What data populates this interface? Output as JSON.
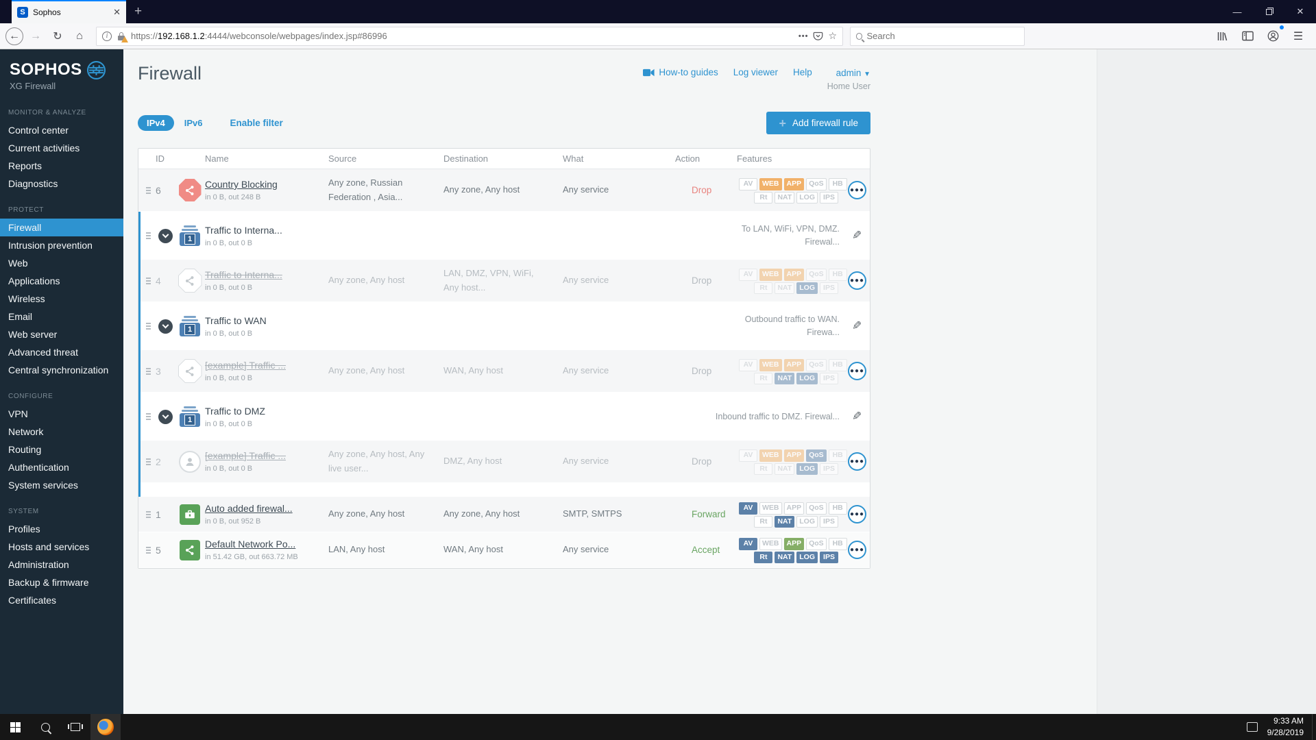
{
  "browser": {
    "tab_title": "Sophos",
    "favicon_letter": "S",
    "url": {
      "scheme": "https://",
      "host": "192.168.1.2",
      "path": ":4444/webconsole/webpages/index.jsp#86996"
    },
    "search_placeholder": "Search"
  },
  "taskbar": {
    "time": "9:33 AM",
    "date": "9/28/2019"
  },
  "colors": {
    "accent_blue": "#2e93d0",
    "sidebar_bg": "#1b2a36",
    "titlebar_bg": "#0e1026",
    "badge_orange": "#f1b169",
    "badge_blue": "#5c81a8",
    "badge_green": "#85ae66",
    "action_red": "#e8837f",
    "action_green": "#6aa563"
  },
  "sidebar": {
    "brand": "SOPHOS",
    "brand_sub": "XG Firewall",
    "sections": [
      {
        "label": "MONITOR & ANALYZE",
        "items": [
          {
            "label": "Control center"
          },
          {
            "label": "Current activities"
          },
          {
            "label": "Reports"
          },
          {
            "label": "Diagnostics"
          }
        ]
      },
      {
        "label": "PROTECT",
        "items": [
          {
            "label": "Firewall",
            "active": true
          },
          {
            "label": "Intrusion prevention"
          },
          {
            "label": "Web"
          },
          {
            "label": "Applications"
          },
          {
            "label": "Wireless"
          },
          {
            "label": "Email"
          },
          {
            "label": "Web server"
          },
          {
            "label": "Advanced threat"
          },
          {
            "label": "Central synchronization"
          }
        ]
      },
      {
        "label": "CONFIGURE",
        "items": [
          {
            "label": "VPN"
          },
          {
            "label": "Network"
          },
          {
            "label": "Routing"
          },
          {
            "label": "Authentication"
          },
          {
            "label": "System services"
          }
        ]
      },
      {
        "label": "SYSTEM",
        "items": [
          {
            "label": "Profiles"
          },
          {
            "label": "Hosts and services"
          },
          {
            "label": "Administration"
          },
          {
            "label": "Backup & firmware"
          },
          {
            "label": "Certificates"
          }
        ]
      }
    ]
  },
  "header": {
    "title": "Firewall",
    "links": [
      {
        "label": "How-to guides",
        "icon": "video-icon"
      },
      {
        "label": "Log viewer"
      },
      {
        "label": "Help"
      }
    ],
    "user": "admin",
    "user_sub": "Home User"
  },
  "filters": {
    "ipv4": "IPv4",
    "ipv6": "IPv6",
    "enable_filter": "Enable filter",
    "add_rule": "Add firewall rule"
  },
  "table": {
    "columns": [
      "ID",
      "Name",
      "Source",
      "Destination",
      "What",
      "Action",
      "Features"
    ],
    "badge_layout": [
      [
        "AV",
        "WEB",
        "APP",
        "QoS",
        "HB"
      ],
      [
        "Rt",
        "NAT",
        "LOG",
        "IPS"
      ]
    ],
    "items": [
      {
        "type": "rule",
        "id": "6",
        "icon": "share-octagon-red",
        "name": "Country Blocking",
        "link": true,
        "sub": "in 0 B, out 248 B",
        "source": "Any zone, Russian Federation , Asia...",
        "dest": "Any zone, Any host",
        "what": "Any service",
        "action": "Drop",
        "action_style": "red",
        "features": {
          "WEB": "orange",
          "APP": "orange"
        },
        "size": "md"
      },
      {
        "type": "group",
        "name": "Traffic to Interna...",
        "sub": "in 0 B, out 0 B",
        "desc": "To LAN, WiFi, VPN, DMZ. Firewal...",
        "children": [
          {
            "type": "rule",
            "id": "4",
            "disabled": true,
            "icon": "share-octagon-gray",
            "name": "Traffic to Interna...",
            "link": true,
            "sub": "in 0 B, out 0 B",
            "source": "Any zone, Any host",
            "dest": "LAN, DMZ, VPN, WiFi, Any host...",
            "what": "Any service",
            "action": "Drop",
            "action_style": "gray",
            "features": {
              "WEB": "orange",
              "APP": "orange",
              "LOG": "blue"
            },
            "size": "md"
          }
        ]
      },
      {
        "type": "group",
        "name": "Traffic to WAN",
        "sub": "in 0 B, out 0 B",
        "desc": "Outbound traffic to WAN. Firewa...",
        "children": [
          {
            "type": "rule",
            "id": "3",
            "disabled": true,
            "icon": "share-octagon-gray",
            "name": "[example] Traffic ...",
            "link": true,
            "sub": "in 0 B, out 0 B",
            "source": "Any zone, Any host",
            "dest": "WAN, Any host",
            "what": "Any service",
            "action": "Drop",
            "action_style": "gray",
            "features": {
              "WEB": "orange",
              "APP": "orange",
              "NAT": "blue",
              "LOG": "blue"
            },
            "size": "md"
          }
        ]
      },
      {
        "type": "group",
        "name": "Traffic to DMZ",
        "sub": "in 0 B, out 0 B",
        "desc": "Inbound traffic to DMZ. Firewal...",
        "spacer": true,
        "children": [
          {
            "type": "rule",
            "id": "2",
            "disabled": true,
            "icon": "user-circle",
            "name": "[example] Traffic ...",
            "link": true,
            "sub": "in 0 B, out 0 B",
            "source": "Any zone, Any host, Any live user...",
            "dest": "DMZ, Any host",
            "what": "Any service",
            "action": "Drop",
            "action_style": "gray",
            "features": {
              "WEB": "orange",
              "APP": "orange",
              "QoS": "blue",
              "LOG": "blue"
            },
            "size": "md"
          }
        ]
      },
      {
        "type": "rule",
        "id": "1",
        "icon": "briefcase-green",
        "name": "Auto added firewal...",
        "link": true,
        "sub": "in 0 B, out 952 B",
        "source": "Any zone, Any host",
        "dest": "Any zone, Any host",
        "what": "SMTP, SMTPS",
        "action": "Forward",
        "action_style": "green",
        "features": {
          "AV": "blue",
          "NAT": "blue"
        },
        "size": "sm"
      },
      {
        "type": "rule",
        "id": "5",
        "icon": "share-square-green",
        "name": "Default Network Po...",
        "link": true,
        "sub": "in 51.42 GB, out 663.72 MB",
        "source": "LAN, Any host",
        "dest": "WAN, Any host",
        "what": "Any service",
        "action": "Accept",
        "action_style": "green",
        "features": {
          "AV": "blue",
          "APP": "green",
          "Rt": "blue",
          "NAT": "blue",
          "LOG": "blue",
          "IPS": "blue"
        },
        "size": "sm",
        "tint": "light"
      }
    ]
  }
}
